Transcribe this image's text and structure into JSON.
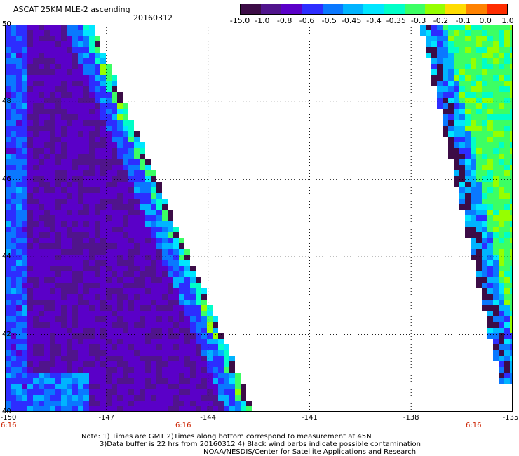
{
  "header": {
    "title": "ASCAT 25KM MLE-2 ascending",
    "date": "20160312"
  },
  "colorbar": {
    "labels": [
      "-15.0",
      "-1.0",
      "-0.8",
      "-0.6",
      "-0.5",
      "-0.45",
      "-0.4",
      "-0.35",
      "-0.3",
      "-0.2",
      "-0.1",
      "0.0",
      "1.0"
    ],
    "colors": [
      "#3c0c46",
      "#50148c",
      "#5a00c8",
      "#2d2dff",
      "#0a78ff",
      "#00b4ff",
      "#00e6ff",
      "#00ffc8",
      "#3cff64",
      "#96ff00",
      "#ffdc00",
      "#ff8200",
      "#ff2d00"
    ]
  },
  "map": {
    "x_ticks": [
      "-150",
      "-147",
      "-144",
      "-141",
      "-138",
      "-135"
    ],
    "y_ticks": [
      "50",
      "48",
      "46",
      "44",
      "42",
      "40"
    ],
    "x_range": [
      -150,
      -135
    ],
    "y_range": [
      40,
      50
    ],
    "time_labels": [
      "6:16",
      "6:16",
      "6:16"
    ],
    "grid": "dotted"
  },
  "notes": {
    "line1": "Note: 1) Times are GMT 2)Times along bottom correspond to measurement at 45N",
    "line2": "3)Data buffer is 22 hrs from 20160312 4) Black wind barbs indicate possible contamination",
    "line3": "NOAA/NESDIS/Center for Satellite Applications and Research"
  }
}
